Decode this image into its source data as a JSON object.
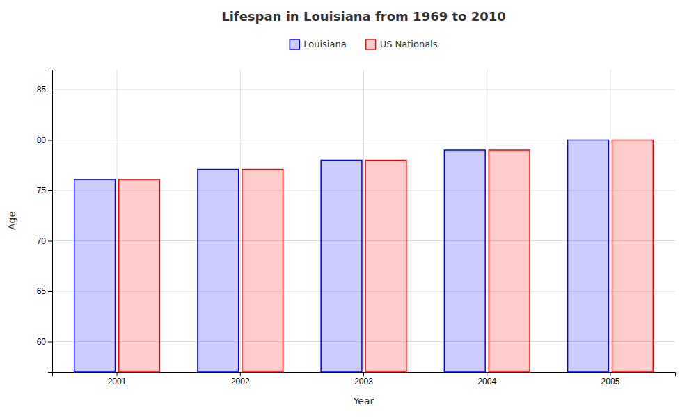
{
  "chart_data": {
    "type": "bar",
    "title": "Lifespan in Louisiana from 1969 to 2010",
    "x_label": "Year",
    "y_label": "Age",
    "categories": [
      "2001",
      "2002",
      "2003",
      "2004",
      "2005"
    ],
    "series": [
      {
        "name": "Louisiana",
        "color": "#0000ff",
        "values": [
          76.1,
          77.1,
          78.0,
          79.0,
          80.0
        ]
      },
      {
        "name": "US Nationals",
        "color": "#ff0000",
        "values": [
          76.1,
          77.1,
          78.0,
          79.0,
          80.0
        ]
      }
    ],
    "ylim": [
      57,
      87
    ],
    "yticks": [
      60,
      65,
      70,
      75,
      80,
      85
    ],
    "grid": true,
    "legend": "top"
  }
}
